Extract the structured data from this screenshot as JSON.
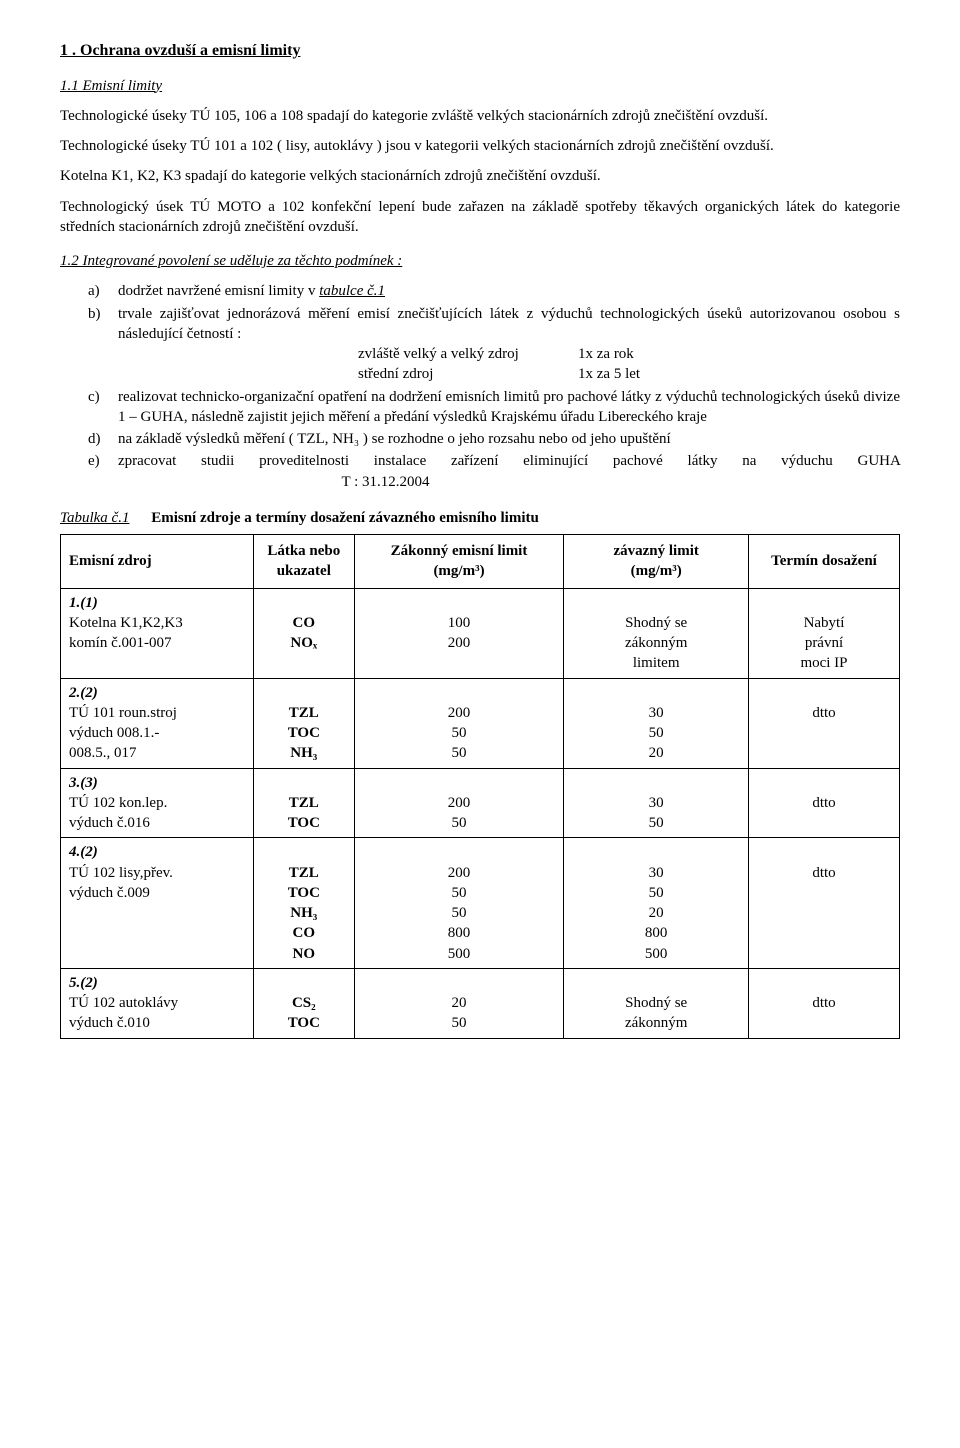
{
  "heading1": "1 . Ochrana ovzduší a emisní limity",
  "heading2": "1.1 Emisní limity",
  "p1": "Technologické úseky TÚ 105, 106 a 108 spadají do kategorie zvláště velkých stacionárních zdrojů znečištění ovzduší.",
  "p2": "Technologické úseky TÚ 101 a 102 ( lisy, autoklávy ) jsou v kategorii velkých stacionárních zdrojů znečištění ovzduší.",
  "p3": "Kotelna K1, K2, K3 spadají do kategorie velkých stacionárních zdrojů znečištění ovzduší.",
  "p4": "Technologický úsek TÚ MOTO a 102 konfekční lepení bude zařazen na základě spotřeby těkavých organických látek do kategorie středních stacionárních zdrojů znečištění ovzduší.",
  "heading3": "1.2 Integrované povolení se uděluje za těchto podmínek :",
  "items": {
    "a_pre": "dodržet navržené emisní limity v ",
    "a_u": "tabulce č.1",
    "b": "trvale zajišťovat jednorázová měření emisí znečišťujících látek z výduchů technologických úseků autorizovanou osobou s následující četností :",
    "b_s1l": "zvláště velký a velký zdroj",
    "b_s1r": "1x za rok",
    "b_s2l": "střední zdroj",
    "b_s2r": "1x za 5 let",
    "c": "realizovat technicko-organizační opatření na dodržení emisních limitů pro pachové látky z výduchů technologických úseků divize 1 – GUHA, následně zajistit jejich měření a předání výsledků Krajskému úřadu Libereckého kraje",
    "d": "na  základě  výsledků  měření ( TZL, NH₃ )  se  rozhodne o jeho  rozsahu nebo od jeho upuštění",
    "e_pre": "zpracovat  studii   proveditelnosti  instalace  zařízení  eliminující   pachové   látky   na výduchu GUHA",
    "e_date": "T : 31.12.2004"
  },
  "caption": {
    "l": "Tabulka č.1",
    "r": "Emisní zdroje a termíny dosažení závazného emisního limitu"
  },
  "table": {
    "headers": {
      "src": "Emisní zdroj",
      "lat": "Látka nebo ukazatel",
      "zak_pre": "Zákonný emisní limit",
      "zak_unit": "(mg/m³)",
      "zav_pre": "závazný limit",
      "zav_unit": "(mg/m³)",
      "ter": "Termín dosažení"
    },
    "rows": [
      {
        "srcnum": "1.(1)",
        "srctxt": "Kotelna K1,K2,K3\nkomín č.001-007",
        "lat": "CO\nNOₓ",
        "zak": "100\n200",
        "zav": "Shodný se\nzákonným\nlimitem",
        "ter": "Nabytí\nprávní\nmoci IP"
      },
      {
        "srcnum": "2.(2)",
        "srctxt": "TÚ 101 roun.stroj\nvýduch 008.1.-\n008.5., 017",
        "lat": "TZL\nTOC\nNH₃",
        "zak": "200\n50\n50",
        "zav": "30\n50\n20",
        "ter": "dtto"
      },
      {
        "srcnum": "3.(3)",
        "srctxt": "TÚ 102 kon.lep.\nvýduch č.016",
        "lat": "TZL\nTOC",
        "zak": "200\n50",
        "zav": "30\n50",
        "ter": "dtto"
      },
      {
        "srcnum": "4.(2)",
        "srctxt": "TÚ 102 lisy,přev.\nvýduch č.009",
        "lat": "TZL\nTOC\nNH₃\nCO\nNO",
        "zak": "200\n50\n50\n800\n500",
        "zav": "30\n50\n20\n800\n500",
        "ter": "dtto"
      },
      {
        "srcnum": "5.(2)",
        "srctxt": "TÚ 102 autoklávy\nvýduch č.010",
        "lat": "CS₂\nTOC",
        "zak": "20\n50",
        "zav": "Shodný se\nzákonným",
        "ter": "dtto"
      }
    ]
  }
}
